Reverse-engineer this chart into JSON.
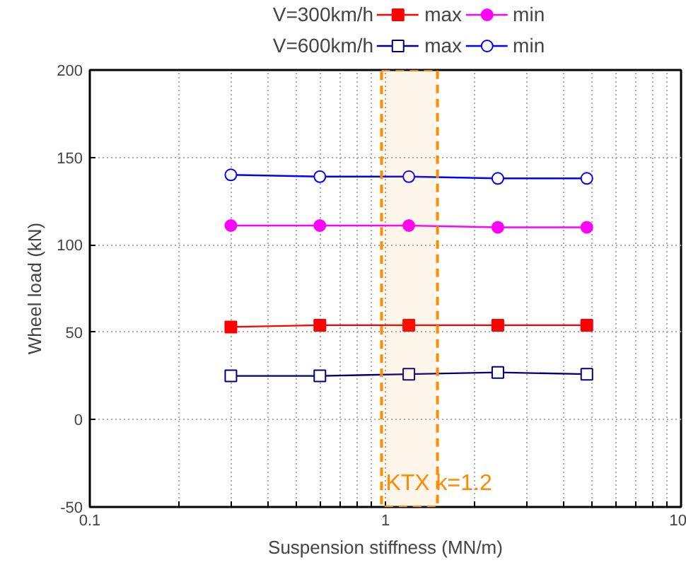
{
  "chart_data": {
    "type": "line",
    "xlabel": "Suspension stiffness (MN/m)",
    "ylabel": "Wheel load (kN)",
    "x": [
      0.3,
      0.6,
      1.2,
      2.4,
      4.8
    ],
    "series": [
      {
        "name": "max",
        "color": "#ff0000",
        "marker": "square",
        "values": [
          53,
          54,
          54,
          54,
          54
        ]
      },
      {
        "name": "min",
        "color": "#ff00ff",
        "marker": "circle",
        "values": [
          111,
          111,
          111,
          110,
          110
        ]
      },
      {
        "name": "max",
        "color": "#000080",
        "marker": "square",
        "values": [
          25,
          25,
          26,
          27,
          26
        ]
      },
      {
        "name": "min",
        "color": "#0000ff",
        "marker": "circle",
        "values": [
          140,
          139,
          139,
          138,
          138
        ]
      }
    ],
    "annotations": [
      "V=300km/h",
      "V=600km/h"
    ],
    "bands": [
      {
        "axis": "x",
        "from": 0.97,
        "to": 1.5,
        "label": "KTX k=1.2",
        "color": "#ff8c00"
      }
    ],
    "log": "x",
    "xlim": [
      0.1,
      10
    ],
    "ylim": [
      -50,
      200
    ],
    "xticks": [
      0.1,
      {
        "value": 0.2,
        "label": null
      },
      {
        "value": 0.3,
        "label": null
      },
      {
        "value": 0.4,
        "label": null
      },
      {
        "value": 0.5,
        "label": null
      },
      {
        "value": 0.6,
        "label": null
      },
      {
        "value": 0.7,
        "label": null
      },
      {
        "value": 0.8,
        "label": null
      },
      {
        "value": 0.9,
        "label": null
      },
      1,
      {
        "value": 2,
        "label": null
      },
      {
        "value": 3,
        "label": null
      },
      {
        "value": 4,
        "label": null
      },
      {
        "value": 5,
        "label": null
      },
      {
        "value": 6,
        "label": null
      },
      {
        "value": 7,
        "label": null
      },
      {
        "value": 8,
        "label": null
      },
      {
        "value": 9,
        "label": null
      },
      10
    ],
    "yticks": [
      -50,
      0,
      50,
      100,
      150,
      200
    ],
    "grid": true,
    "legend": "top"
  }
}
